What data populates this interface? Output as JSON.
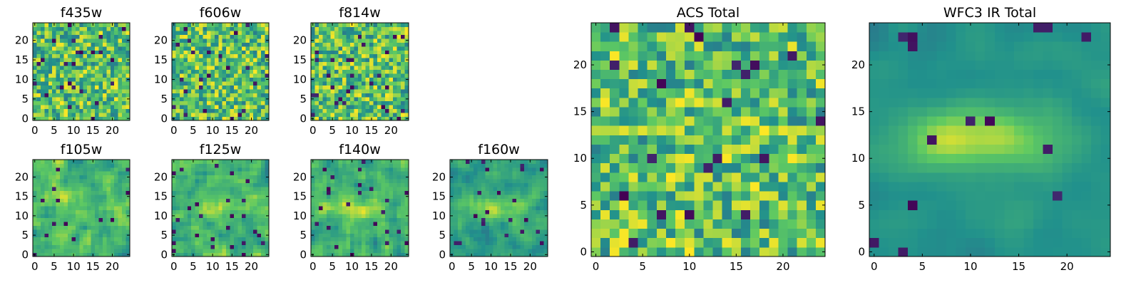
{
  "chart_data": [
    {
      "type": "heatmap",
      "title": "f435w",
      "xticks": [
        0,
        5,
        10,
        15,
        20
      ],
      "yticks": [
        0,
        5,
        10,
        15,
        20
      ],
      "xlim": [
        -0.5,
        24.5
      ],
      "ylim": [
        -0.5,
        24.5
      ],
      "grid_size": 25,
      "colormap": "viridis",
      "seed": 11,
      "smooth": 0,
      "blob": 0,
      "lowfrac": 0.04
    },
    {
      "type": "heatmap",
      "title": "f606w",
      "xticks": [
        0,
        5,
        10,
        15,
        20
      ],
      "yticks": [
        0,
        5,
        10,
        15,
        20
      ],
      "xlim": [
        -0.5,
        24.5
      ],
      "ylim": [
        -0.5,
        24.5
      ],
      "grid_size": 25,
      "colormap": "viridis",
      "seed": 23,
      "smooth": 0,
      "blob": 0,
      "lowfrac": 0.04
    },
    {
      "type": "heatmap",
      "title": "f814w",
      "xticks": [
        0,
        5,
        10,
        15,
        20
      ],
      "yticks": [
        0,
        5,
        10,
        15,
        20
      ],
      "xlim": [
        -0.5,
        24.5
      ],
      "ylim": [
        -0.5,
        24.5
      ],
      "grid_size": 25,
      "colormap": "viridis",
      "seed": 37,
      "smooth": 0,
      "blob": 0,
      "lowfrac": 0.04
    },
    {
      "type": "heatmap",
      "title": "f105w",
      "xticks": [
        0,
        5,
        10,
        15,
        20
      ],
      "yticks": [
        0,
        5,
        10,
        15,
        20
      ],
      "xlim": [
        -0.5,
        24.5
      ],
      "ylim": [
        -0.5,
        24.5
      ],
      "grid_size": 25,
      "colormap": "viridis",
      "seed": 41,
      "smooth": 1,
      "blob": 0.15,
      "lowfrac": 0.03
    },
    {
      "type": "heatmap",
      "title": "f125w",
      "xticks": [
        0,
        5,
        10,
        15,
        20
      ],
      "yticks": [
        0,
        5,
        10,
        15,
        20
      ],
      "xlim": [
        -0.5,
        24.5
      ],
      "ylim": [
        -0.5,
        24.5
      ],
      "grid_size": 25,
      "colormap": "viridis",
      "seed": 53,
      "smooth": 1,
      "blob": 0.2,
      "lowfrac": 0.03
    },
    {
      "type": "heatmap",
      "title": "f140w",
      "xticks": [
        0,
        5,
        10,
        15,
        20
      ],
      "yticks": [
        0,
        5,
        10,
        15,
        20
      ],
      "xlim": [
        -0.5,
        24.5
      ],
      "ylim": [
        -0.5,
        24.5
      ],
      "grid_size": 25,
      "colormap": "viridis",
      "seed": 67,
      "smooth": 1,
      "blob": 0.3,
      "lowfrac": 0.03
    },
    {
      "type": "heatmap",
      "title": "f160w",
      "xticks": [
        0,
        5,
        10,
        15,
        20
      ],
      "yticks": [
        0,
        5,
        10,
        15,
        20
      ],
      "xlim": [
        -0.5,
        24.5
      ],
      "ylim": [
        -0.5,
        24.5
      ],
      "grid_size": 25,
      "colormap": "viridis",
      "seed": 79,
      "smooth": 1,
      "blob": 0.5,
      "lowfrac": 0.03
    },
    {
      "type": "heatmap",
      "title": "ACS Total",
      "xticks": [
        0,
        5,
        10,
        15,
        20
      ],
      "yticks": [
        0,
        5,
        10,
        15,
        20
      ],
      "xlim": [
        -0.5,
        24.5
      ],
      "ylim": [
        -0.5,
        24.5
      ],
      "grid_size": 25,
      "colormap": "viridis",
      "seed": 91,
      "smooth": 0,
      "blob": 0,
      "lowfrac": 0.03
    },
    {
      "type": "heatmap",
      "title": "WFC3 IR Total",
      "xticks": [
        0,
        5,
        10,
        15,
        20
      ],
      "yticks": [
        0,
        5,
        10,
        15,
        20
      ],
      "xlim": [
        -0.5,
        24.5
      ],
      "ylim": [
        -0.5,
        24.5
      ],
      "grid_size": 25,
      "colormap": "viridis",
      "seed": 103,
      "smooth": 2,
      "blob": 0.7,
      "lowfrac": 0.02
    }
  ]
}
